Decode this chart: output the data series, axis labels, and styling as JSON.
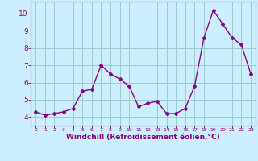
{
  "x": [
    0,
    1,
    2,
    3,
    4,
    5,
    6,
    7,
    8,
    9,
    10,
    11,
    12,
    13,
    14,
    15,
    16,
    17,
    18,
    19,
    20,
    21,
    22,
    23
  ],
  "y": [
    4.3,
    4.1,
    4.2,
    4.3,
    4.5,
    5.5,
    5.6,
    7.0,
    6.5,
    6.2,
    5.8,
    4.6,
    4.8,
    4.9,
    4.2,
    4.2,
    4.5,
    5.8,
    8.6,
    10.2,
    9.4,
    8.6,
    8.2,
    6.5
  ],
  "line_color": "#880088",
  "marker": "D",
  "markersize": 2.0,
  "linewidth": 1.0,
  "xlabel": "Windchill (Refroidissement éolien,°C)",
  "xlabel_fontsize": 6.5,
  "ylim": [
    3.5,
    10.7
  ],
  "xlim": [
    -0.5,
    23.5
  ],
  "yticks": [
    4,
    5,
    6,
    7,
    8,
    9,
    10
  ],
  "xticks": [
    0,
    1,
    2,
    3,
    4,
    5,
    6,
    7,
    8,
    9,
    10,
    11,
    12,
    13,
    14,
    15,
    16,
    17,
    18,
    19,
    20,
    21,
    22,
    23
  ],
  "bg_color": "#cceeff",
  "grid_color": "#99cccc",
  "tick_color": "#880088",
  "axis_color": "#880088",
  "tick_fontsize_y": 6.5,
  "tick_fontsize_x": 4.5
}
